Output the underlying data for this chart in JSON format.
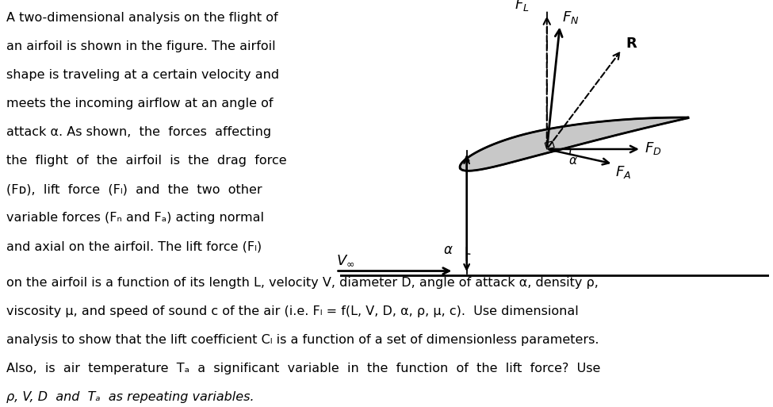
{
  "background_color": "#ffffff",
  "fig_width": 9.75,
  "fig_height": 5.13,
  "left_text_lines": [
    "A two-dimensional analysis on the flight of",
    "an airfoil is shown in the figure. The airfoil",
    "shape is traveling at a certain velocity and",
    "meets the incoming airflow at an angle of",
    "attack α. As shown,  the  forces  affecting",
    "the  flight  of  the  airfoil  is  the  drag  force",
    "(Fᴅ),  lift  force  (Fₗ)  and  the  two  other",
    "variable forces (Fₙ and Fₐ) acting normal",
    "and axial on the airfoil. The lift force (Fₗ)"
  ],
  "bottom_text_lines": [
    "on the airfoil is a function of its length L, velocity V, diameter D, angle of attack α, density ρ,",
    "viscosity μ, and speed of sound c of the air (i.e. Fₗ = f(L, V, D, α, ρ, μ, c).  Use dimensional",
    "analysis to show that the lift coefficient Cₗ is a function of a set of dimensionless parameters.",
    "Also,  is  air  temperature  Tₐ  a  significant  variable  in  the  function  of  the  lift  force?  Use"
  ],
  "last_line": "ρ, V, D  and  Tₐ  as repeating variables.",
  "font_size": 11.5,
  "airfoil_gray": "#c8c8c8",
  "airfoil_dark": "#1a1a1a"
}
